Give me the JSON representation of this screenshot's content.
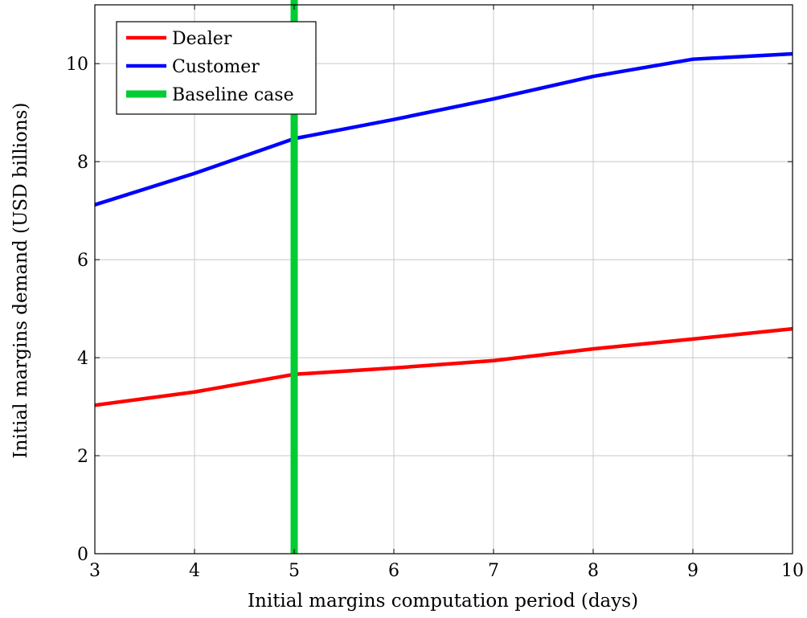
{
  "chart_data": {
    "type": "line",
    "title": "",
    "xlabel": "Initial margins computation period (days)",
    "ylabel": "Initial margins demand (USD billions)",
    "xlim": [
      3,
      10
    ],
    "ylim": [
      0,
      11.2
    ],
    "xticks": [
      3,
      4,
      5,
      6,
      7,
      8,
      9,
      10
    ],
    "yticks": [
      0,
      2,
      4,
      6,
      8,
      10
    ],
    "grid": true,
    "legend_position": "top-left",
    "x": [
      3,
      4,
      5,
      6,
      7,
      8,
      9,
      10
    ],
    "series": [
      {
        "name": "Dealer",
        "color": "#ff0000",
        "values": [
          3.03,
          3.3,
          3.66,
          3.79,
          3.94,
          4.18,
          4.38,
          4.59
        ]
      },
      {
        "name": "Customer",
        "color": "#0000ff",
        "values": [
          7.12,
          7.76,
          8.47,
          8.86,
          9.28,
          9.74,
          10.09,
          10.2
        ]
      }
    ],
    "reference_lines": [
      {
        "name": "Baseline case",
        "color": "#00cc33",
        "orientation": "vertical",
        "x": 5
      }
    ]
  }
}
